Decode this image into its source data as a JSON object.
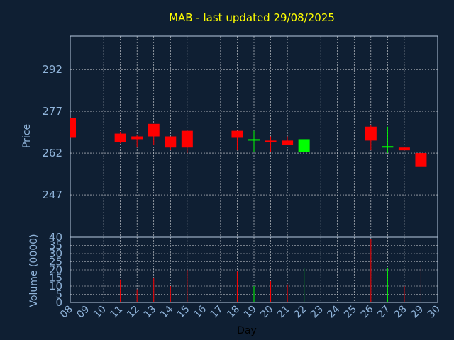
{
  "chart_data": {
    "type": "candlestick",
    "title": "MAB - last updated 29/08/2025",
    "price_ylabel": "Price",
    "volume_ylabel": "Volume (0000)",
    "xlabel": "Day",
    "x_ticks": [
      "08",
      "09",
      "10",
      "11",
      "12",
      "13",
      "14",
      "15",
      "16",
      "17",
      "18",
      "19",
      "20",
      "21",
      "22",
      "23",
      "24",
      "25",
      "26",
      "27",
      "28",
      "29",
      "30"
    ],
    "price_ticks": [
      247,
      262,
      277,
      292
    ],
    "price_ylim": [
      232,
      304
    ],
    "volume_ticks": [
      0,
      5,
      10,
      15,
      20,
      25,
      30,
      35,
      40
    ],
    "volume_ylim": [
      0,
      40
    ],
    "up_color": "#00ff00",
    "down_color": "#ff0000",
    "candles": [
      {
        "day": "08",
        "open": 274.5,
        "close": 267.5,
        "high": 274.5,
        "low": 267.5,
        "volume": 0
      },
      {
        "day": "11",
        "open": 269.0,
        "close": 266.0,
        "high": 269.5,
        "low": 265.5,
        "volume": 14
      },
      {
        "day": "12",
        "open": 268.0,
        "close": 267.0,
        "high": 268.5,
        "low": 264.0,
        "volume": 8
      },
      {
        "day": "13",
        "open": 272.5,
        "close": 268.0,
        "high": 272.5,
        "low": 265.0,
        "volume": 15
      },
      {
        "day": "14",
        "open": 268.0,
        "close": 264.0,
        "high": 268.0,
        "low": 263.0,
        "volume": 10
      },
      {
        "day": "15",
        "open": 270.0,
        "close": 264.0,
        "high": 270.0,
        "low": 262.0,
        "volume": 20
      },
      {
        "day": "18",
        "open": 270.0,
        "close": 267.5,
        "high": 270.0,
        "low": 263.0,
        "volume": 19
      },
      {
        "day": "19",
        "open": 266.5,
        "close": 267.0,
        "high": 270.0,
        "low": 262.5,
        "volume": 10
      },
      {
        "day": "20",
        "open": 266.5,
        "close": 266.0,
        "high": 268.0,
        "low": 262.5,
        "volume": 13
      },
      {
        "day": "21",
        "open": 266.5,
        "close": 265.0,
        "high": 268.0,
        "low": 265.0,
        "volume": 11
      },
      {
        "day": "22",
        "open": 262.5,
        "close": 267.0,
        "high": 267.0,
        "low": 262.5,
        "volume": 21
      },
      {
        "day": "26",
        "open": 271.5,
        "close": 266.5,
        "high": 272.0,
        "low": 263.0,
        "volume": 39
      },
      {
        "day": "27",
        "open": 264.0,
        "close": 264.5,
        "high": 271.5,
        "low": 262.0,
        "volume": 21
      },
      {
        "day": "28",
        "open": 264.0,
        "close": 263.0,
        "high": 264.0,
        "low": 263.0,
        "volume": 10
      },
      {
        "day": "29",
        "open": 262.0,
        "close": 257.0,
        "high": 263.0,
        "low": 257.0,
        "volume": 23
      }
    ]
  }
}
